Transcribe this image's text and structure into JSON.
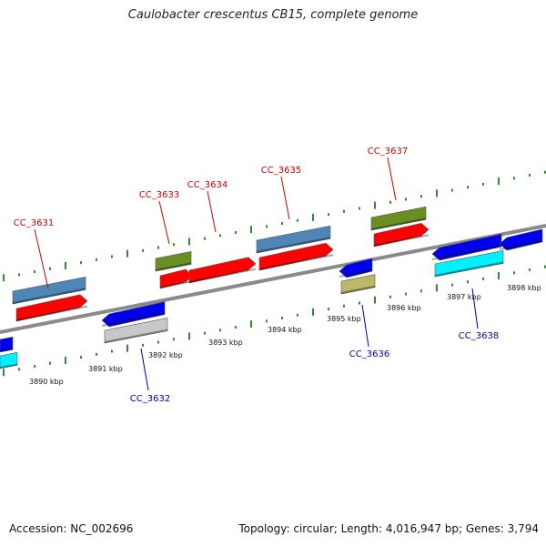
{
  "title": "Caulobacter crescentus CB15, complete genome",
  "footer": {
    "accession": "Accession: NC_002696",
    "summary": "Topology: circular; Length: 4,016,947 bp; Genes: 3,794"
  },
  "colors": {
    "backbone": "#8a8a8a",
    "tick": "#2e8b2e",
    "cds": "#ff0000",
    "gene_steel": "#4f86b8",
    "gene_olive": "#6b8e23",
    "gene_blue": "#0000ee",
    "gene_cyan": "#00f0ff",
    "gene_khaki": "#bdb76b",
    "gene_silver": "#c8c8c8",
    "label_forward": "#cc0000",
    "label_reverse": "#0000aa"
  },
  "scale": {
    "unit": "kbp",
    "ticks": [
      {
        "kbp": 3890,
        "label": "3890 kbp"
      },
      {
        "kbp": 3891,
        "label": "3891 kbp"
      },
      {
        "kbp": 3892,
        "label": "3892 kbp"
      },
      {
        "kbp": 3893,
        "label": "3893 kbp"
      },
      {
        "kbp": 3894,
        "label": "3894 kbp"
      },
      {
        "kbp": 3895,
        "label": "3895 kbp"
      },
      {
        "kbp": 3896,
        "label": "3896 kbp"
      },
      {
        "kbp": 3897,
        "label": "3897 kbp"
      },
      {
        "kbp": 3898,
        "label": "3898 kbp"
      }
    ]
  },
  "labels": {
    "forward": [
      {
        "id": "CC_3631",
        "text": "CC_3631"
      },
      {
        "id": "CC_3633",
        "text": "CC_3633"
      },
      {
        "id": "CC_3634",
        "text": "CC_3634"
      },
      {
        "id": "CC_3635",
        "text": "CC_3635"
      },
      {
        "id": "CC_3637",
        "text": "CC_3637"
      }
    ],
    "reverse": [
      {
        "id": "CC_3632",
        "text": "CC_3632"
      },
      {
        "id": "CC_3636",
        "text": "CC_3636"
      },
      {
        "id": "CC_3638",
        "text": "CC_3638"
      }
    ]
  }
}
